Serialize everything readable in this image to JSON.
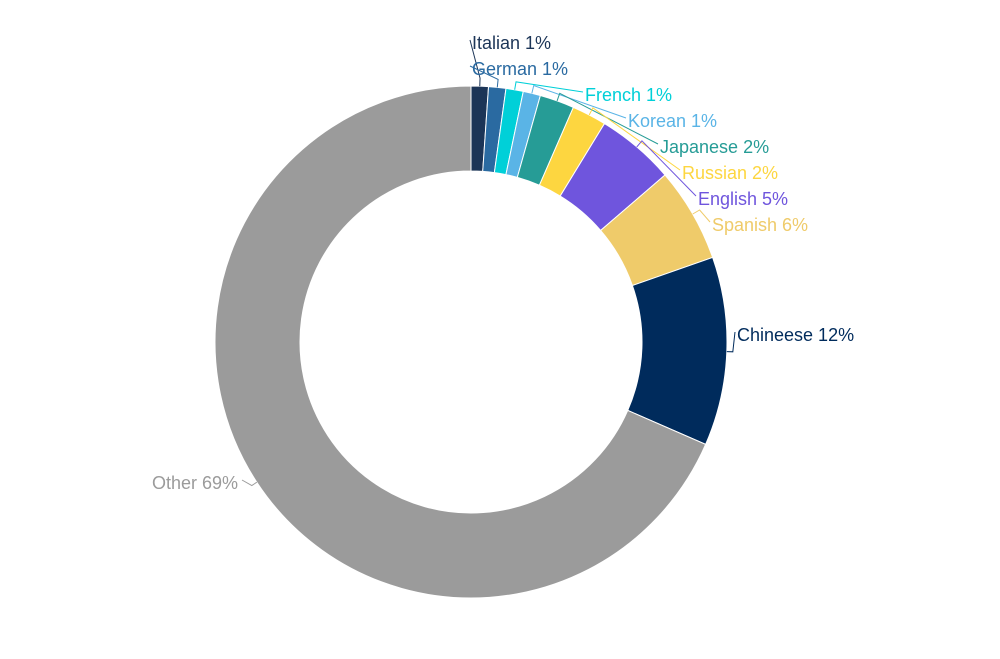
{
  "chart_data": {
    "type": "pie",
    "donut": true,
    "title": "",
    "legend": "none",
    "slices": [
      {
        "label": "Italian 1%",
        "value": 1.1,
        "color": "#1c3557"
      },
      {
        "label": "German 1%",
        "value": 1.1,
        "color": "#2a6aa1"
      },
      {
        "label": "French 1%",
        "value": 1.1,
        "color": "#00d0d8"
      },
      {
        "label": "Korean 1%",
        "value": 1.1,
        "color": "#5ab4e6"
      },
      {
        "label": "Japanese 2%",
        "value": 2.2,
        "color": "#269c96"
      },
      {
        "label": "Russian 2%",
        "value": 2.2,
        "color": "#fdd640"
      },
      {
        "label": "English 5%",
        "value": 5.0,
        "color": "#6f55dd"
      },
      {
        "label": "Spanish 6%",
        "value": 6.0,
        "color": "#efcb6a"
      },
      {
        "label": "Chineese 12%",
        "value": 12.0,
        "color": "#002b5c"
      },
      {
        "label": "Other 69%",
        "value": 69.0,
        "color": "#9b9b9b"
      }
    ]
  }
}
